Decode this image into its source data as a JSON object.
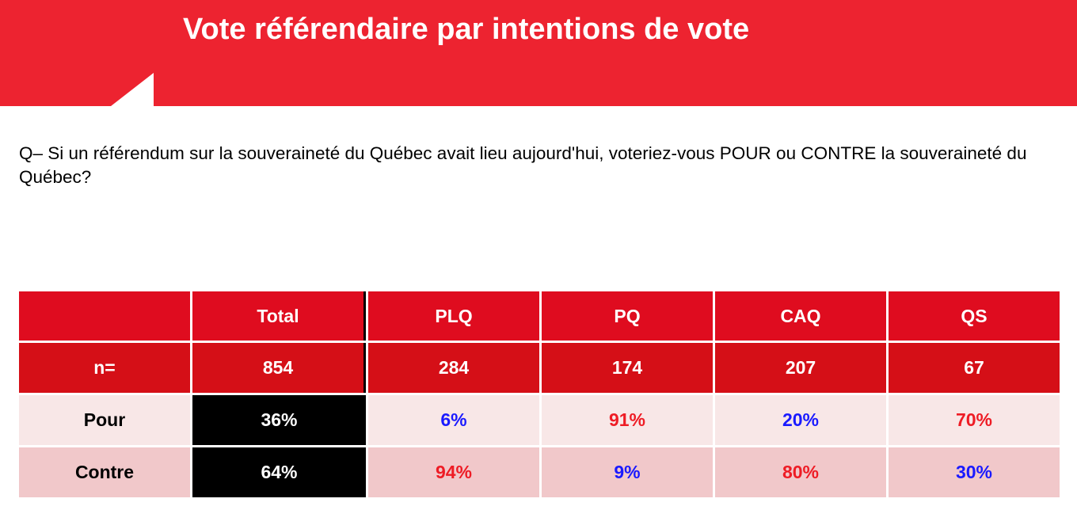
{
  "header": {
    "title": "Vote référendaire par intentions de vote",
    "background_color": "#ed2330"
  },
  "question": "Q– Si un référendum sur la souveraineté du Québec avait lieu aujourd'hui, voteriez-vous POUR ou CONTRE la souveraineté du Québec?",
  "table": {
    "columns": [
      "",
      "Total",
      "PLQ",
      "PQ",
      "CAQ",
      "QS"
    ],
    "n_row": {
      "label": "n=",
      "values": [
        "854",
        "284",
        "174",
        "207",
        "67"
      ]
    },
    "rows": [
      {
        "label": "Pour",
        "values": [
          "36%",
          "6%",
          "91%",
          "20%",
          "70%"
        ]
      },
      {
        "label": "Contre",
        "values": [
          "64%",
          "94%",
          "9%",
          "80%",
          "30%"
        ]
      }
    ],
    "colors": {
      "header_red": "#df0c1f",
      "highlight_blue": "#1a1aff",
      "highlight_red": "#ee1c25",
      "total_background": "#000000"
    }
  }
}
